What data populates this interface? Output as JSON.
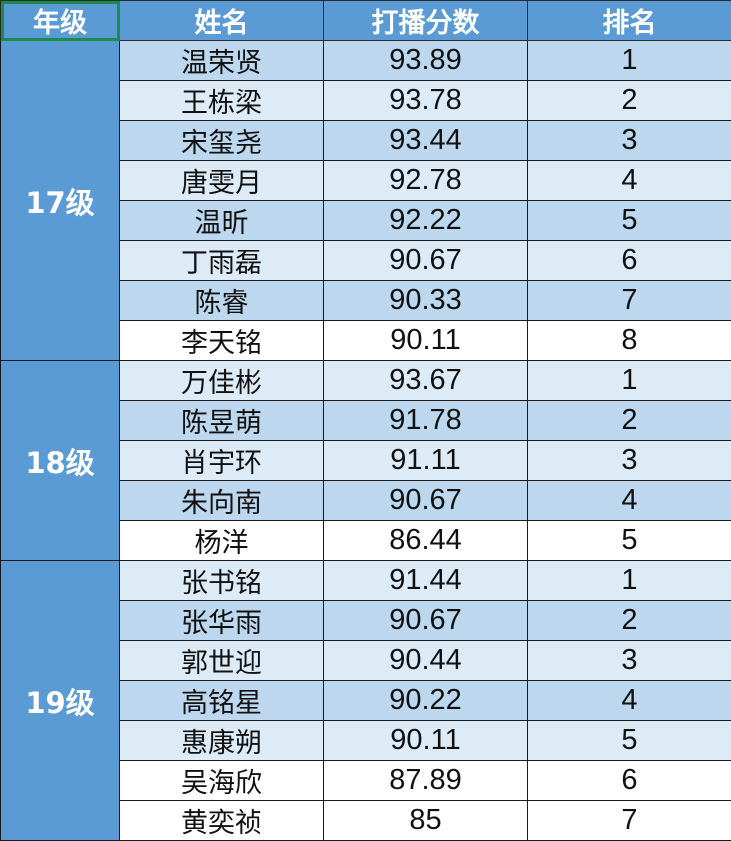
{
  "headers": {
    "grade": "年级",
    "name": "姓名",
    "score": "打播分数",
    "rank": "排名"
  },
  "groups": [
    {
      "grade": "17级",
      "rows": [
        {
          "name": "温荣贤",
          "score": "93.89",
          "rank": "1",
          "fill": "dark"
        },
        {
          "name": "王栋梁",
          "score": "93.78",
          "rank": "2",
          "fill": "light"
        },
        {
          "name": "宋玺尧",
          "score": "93.44",
          "rank": "3",
          "fill": "dark"
        },
        {
          "name": "唐雯月",
          "score": "92.78",
          "rank": "4",
          "fill": "light"
        },
        {
          "name": "温昕",
          "score": "92.22",
          "rank": "5",
          "fill": "dark"
        },
        {
          "name": "丁雨磊",
          "score": "90.67",
          "rank": "6",
          "fill": "light"
        },
        {
          "name": "陈睿",
          "score": "90.33",
          "rank": "7",
          "fill": "dark"
        },
        {
          "name": "李天铭",
          "score": "90.11",
          "rank": "8",
          "fill": "white"
        }
      ]
    },
    {
      "grade": "18级",
      "rows": [
        {
          "name": "万佳彬",
          "score": "93.67",
          "rank": "1",
          "fill": "light"
        },
        {
          "name": "陈昱萌",
          "score": "91.78",
          "rank": "2",
          "fill": "dark"
        },
        {
          "name": "肖宇环",
          "score": "91.11",
          "rank": "3",
          "fill": "light"
        },
        {
          "name": "朱向南",
          "score": "90.67",
          "rank": "4",
          "fill": "dark"
        },
        {
          "name": "杨洋",
          "score": "86.44",
          "rank": "5",
          "fill": "white"
        }
      ]
    },
    {
      "grade": "19级",
      "rows": [
        {
          "name": "张书铭",
          "score": "91.44",
          "rank": "1",
          "fill": "light"
        },
        {
          "name": "张华雨",
          "score": "90.67",
          "rank": "2",
          "fill": "dark"
        },
        {
          "name": "郭世迎",
          "score": "90.44",
          "rank": "3",
          "fill": "light"
        },
        {
          "name": "高铭星",
          "score": "90.22",
          "rank": "4",
          "fill": "dark"
        },
        {
          "name": "惠康朔",
          "score": "90.11",
          "rank": "5",
          "fill": "light"
        },
        {
          "name": "吴海欣",
          "score": "87.89",
          "rank": "6",
          "fill": "white"
        },
        {
          "name": "黄奕祯",
          "score": "85",
          "rank": "7",
          "fill": "white"
        }
      ]
    }
  ],
  "colors": {
    "header": "#5b9bd5",
    "dark_row": "#bdd7ee",
    "light_row": "#ddebf7",
    "selection": "#1e8a4c"
  }
}
